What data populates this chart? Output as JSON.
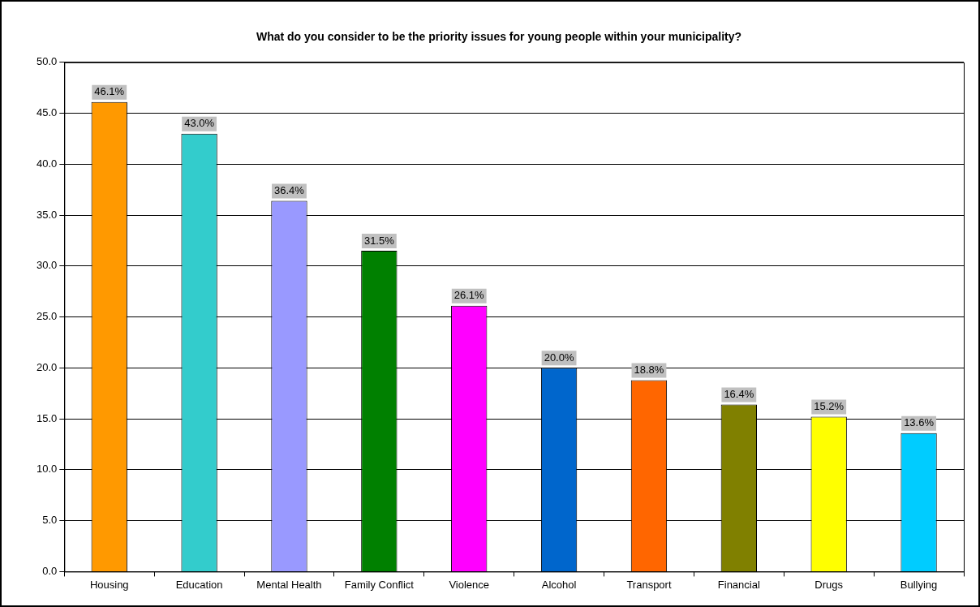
{
  "chart_data": {
    "type": "bar",
    "title": "What do you consider to be the priority issues for young people within your municipality?",
    "categories": [
      "Housing",
      "Education",
      "Mental Health",
      "Family Conflict",
      "Violence",
      "Alcohol",
      "Transport",
      "Financial",
      "Drugs",
      "Bullying"
    ],
    "values": [
      46.1,
      43.0,
      36.4,
      31.5,
      26.1,
      20.0,
      18.8,
      16.4,
      15.2,
      13.6
    ],
    "value_labels": [
      "46.1%",
      "43.0%",
      "36.4%",
      "31.5%",
      "26.1%",
      "20.0%",
      "18.8%",
      "16.4%",
      "15.2%",
      "13.6%"
    ],
    "colors": [
      "#ff9900",
      "#33cccc",
      "#9999ff",
      "#008000",
      "#ff00ff",
      "#0066cc",
      "#ff6600",
      "#808000",
      "#ffff00",
      "#00ccff"
    ],
    "ylim": [
      0,
      50
    ],
    "yticks": [
      {
        "value": 0,
        "label": "0.0"
      },
      {
        "value": 5,
        "label": "5.0"
      },
      {
        "value": 10,
        "label": "10.0"
      },
      {
        "value": 15,
        "label": "15.0"
      },
      {
        "value": 20,
        "label": "20.0"
      },
      {
        "value": 25,
        "label": "25.0"
      },
      {
        "value": 30,
        "label": "30.0"
      },
      {
        "value": 35,
        "label": "35.0"
      },
      {
        "value": 40,
        "label": "40.0"
      },
      {
        "value": 45,
        "label": "45.0"
      },
      {
        "value": 50,
        "label": "50.0"
      }
    ],
    "grid": "y",
    "legend": false
  }
}
